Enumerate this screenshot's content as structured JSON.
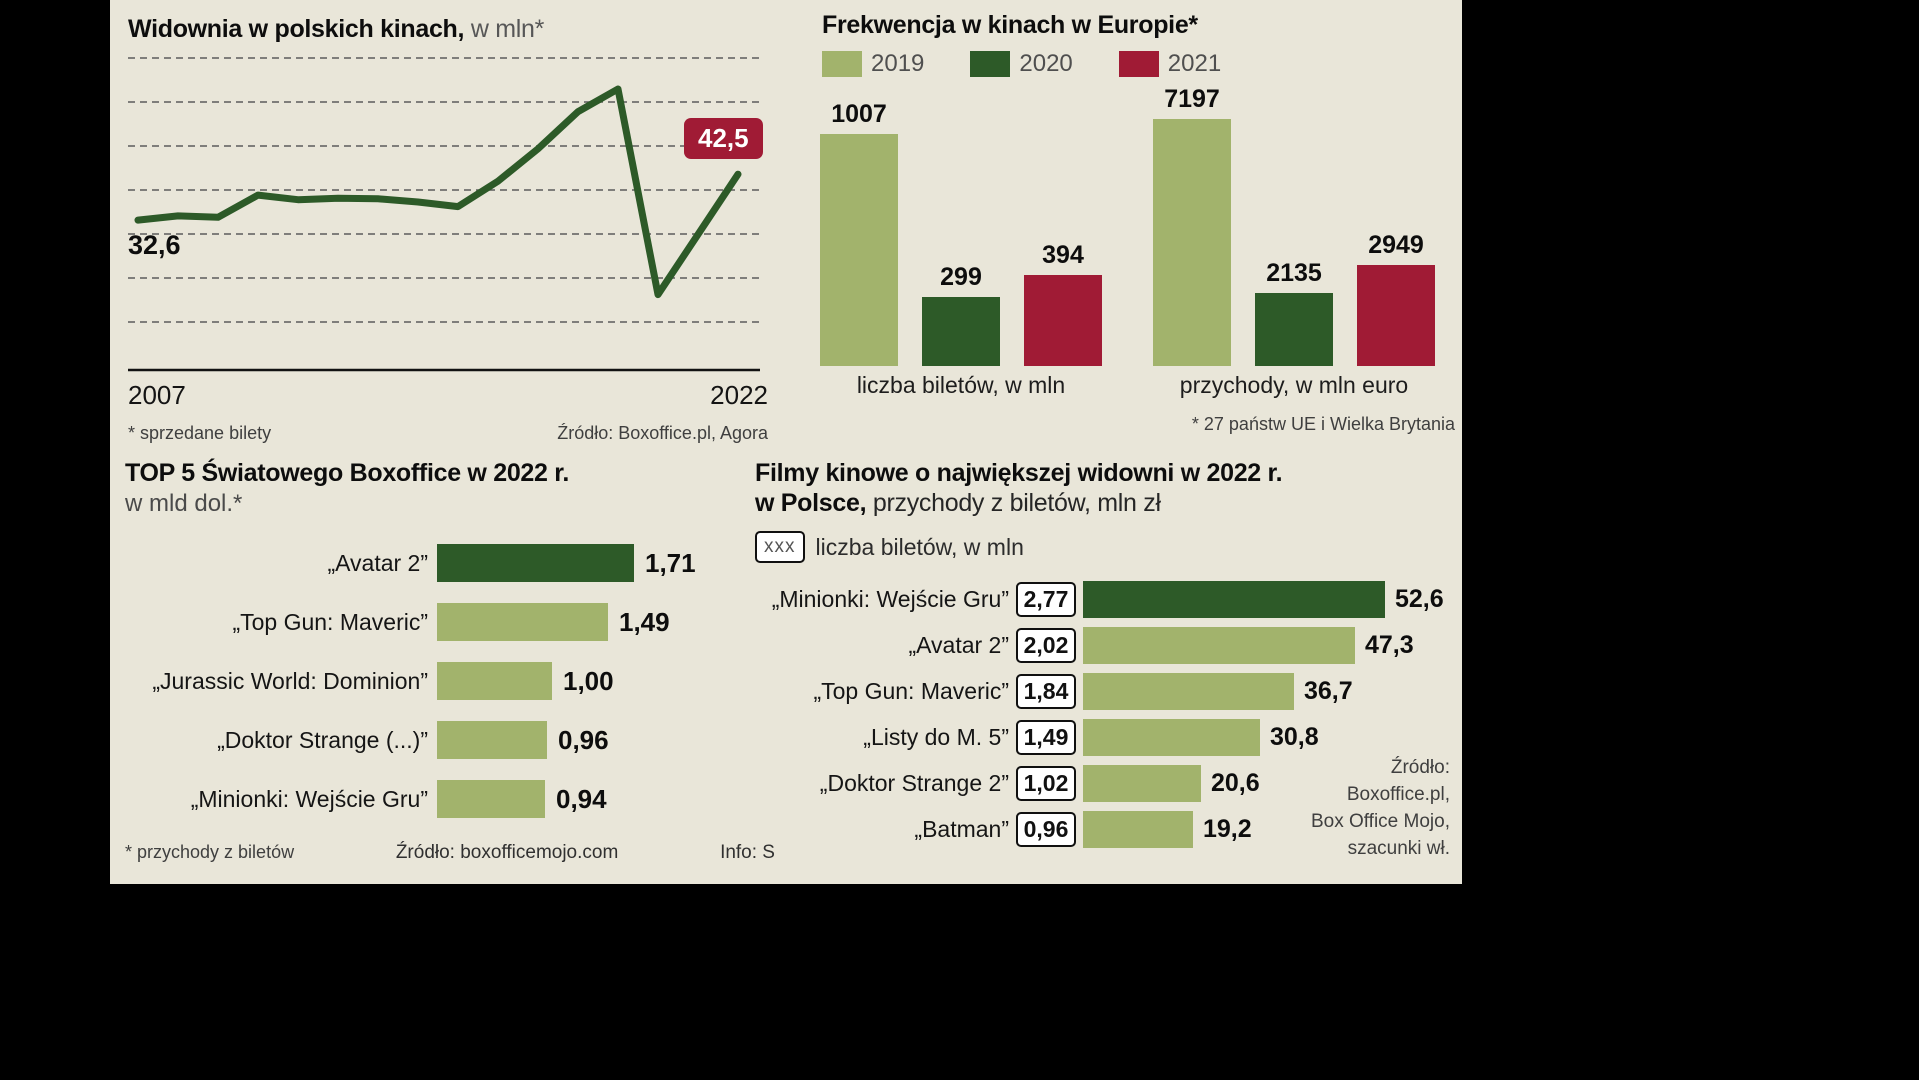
{
  "colors": {
    "background": "#e9e6d9",
    "dark_green": "#2d5a28",
    "light_green": "#a2b36c",
    "crimson": "#a01b35"
  },
  "chart_data": [
    {
      "id": "widownia-polska",
      "type": "line",
      "title": "Widownia w polskich kinach,",
      "title_suffix": " w mln*",
      "x_range": [
        2007,
        2022
      ],
      "years": [
        2007,
        2008,
        2009,
        2010,
        2011,
        2012,
        2013,
        2014,
        2015,
        2016,
        2017,
        2018,
        2019,
        2020,
        2021,
        2022
      ],
      "values": [
        32.6,
        33.5,
        33.2,
        38.0,
        37.0,
        37.3,
        37.2,
        36.5,
        35.5,
        41.0,
        48.0,
        56.0,
        60.9,
        16.5,
        29.5,
        42.5
      ],
      "first_value_label": "32,6",
      "last_value_label": "42,5",
      "x_start": "2007",
      "x_end": "2022",
      "grid": "dashed-horizontal",
      "footnote": "* sprzedane bilety",
      "source": "Źródło: Boxoffice.pl, Agora"
    },
    {
      "id": "frekwencja-europa",
      "type": "bar",
      "title": "Frekwencja w kinach w Europie*",
      "legend_position": "top",
      "legend": [
        {
          "label": "2019",
          "color": "#a2b36c"
        },
        {
          "label": "2020",
          "color": "#2d5a28"
        },
        {
          "label": "2021",
          "color": "#a01b35"
        }
      ],
      "groups": [
        {
          "label": "liczba biletów, w mln",
          "values": [
            1007,
            299,
            394
          ],
          "value_labels": [
            "1007",
            "299",
            "394"
          ]
        },
        {
          "label": "przychody, w mln euro",
          "values": [
            7197,
            2135,
            2949
          ],
          "value_labels": [
            "7197",
            "2135",
            "2949"
          ]
        }
      ],
      "footnote": "* 27 państw UE i Wielka Brytania"
    },
    {
      "id": "top5-boxoffice",
      "type": "bar",
      "orientation": "horizontal",
      "title": "TOP 5 Światowego Boxoffice w 2022 r.",
      "subtitle": "w mld dol.*",
      "rows": [
        {
          "label": "„Avatar 2”",
          "value": 1.71,
          "value_label": "1,71",
          "color": "dark"
        },
        {
          "label": "„Top Gun: Maveric”",
          "value": 1.49,
          "value_label": "1,49",
          "color": "light"
        },
        {
          "label": "„Jurassic World: Dominion”",
          "value": 1.0,
          "value_label": "1,00",
          "color": "light"
        },
        {
          "label": "„Doktor Strange (...)”",
          "value": 0.96,
          "value_label": "0,96",
          "color": "light"
        },
        {
          "label": "„Minionki: Wejście Gru”",
          "value": 0.94,
          "value_label": "0,94",
          "color": "light"
        }
      ],
      "footnote": "* przychody z biletów",
      "source": "Źródło: boxofficemojo.com",
      "info": "Info: S"
    },
    {
      "id": "filmy-polska",
      "type": "bar",
      "orientation": "horizontal",
      "title_line1": "Filmy kinowe o największej widowni w 2022 r.",
      "title_line2_bold": "w Polsce,",
      "title_line2_rest": " przychody z biletów, mln zł",
      "legend_box": "xxx",
      "legend_text": "liczba biletów, w mln",
      "rows": [
        {
          "label": "„Minionki: Wejście Gru”",
          "tickets": "2,77",
          "value": 52.6,
          "value_label": "52,6",
          "color": "dark"
        },
        {
          "label": "„Avatar 2”",
          "tickets": "2,02",
          "value": 47.3,
          "value_label": "47,3",
          "color": "light"
        },
        {
          "label": "„Top Gun: Maveric”",
          "tickets": "1,84",
          "value": 36.7,
          "value_label": "36,7",
          "color": "light"
        },
        {
          "label": "„Listy do M. 5”",
          "tickets": "1,49",
          "value": 30.8,
          "value_label": "30,8",
          "color": "light"
        },
        {
          "label": "„Doktor Strange 2”",
          "tickets": "1,02",
          "value": 20.6,
          "value_label": "20,6",
          "color": "light"
        },
        {
          "label": "„Batman”",
          "tickets": "0,96",
          "value": 19.2,
          "value_label": "19,2",
          "color": "light"
        }
      ],
      "source_lines": [
        "Źródło:",
        "Boxoffice.pl,",
        "Box Office Mojo,",
        "szacunki wł."
      ]
    }
  ]
}
